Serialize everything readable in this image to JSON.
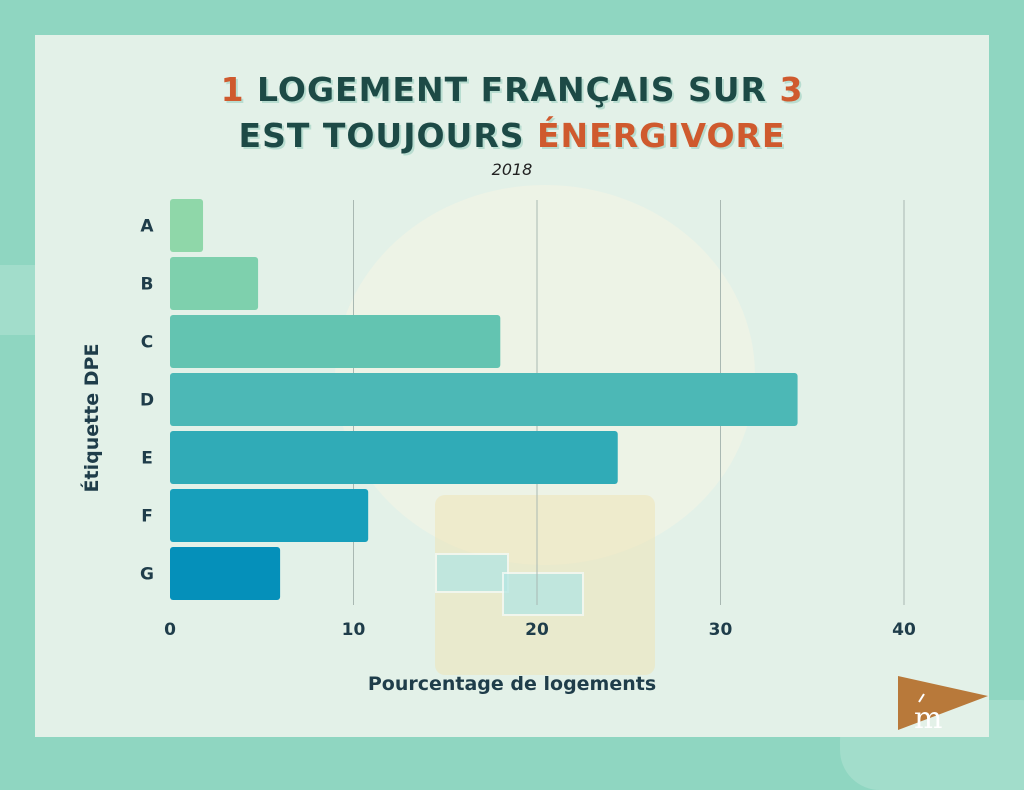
{
  "title": {
    "line1": [
      {
        "text": "1",
        "accent": true
      },
      {
        "text": " LOGEMENT FRANÇAIS SUR ",
        "accent": false
      },
      {
        "text": "3",
        "accent": true
      }
    ],
    "line2": [
      {
        "text": "EST TOUJOURS ",
        "accent": false
      },
      {
        "text": "ÉNERGIVORE",
        "accent": true
      }
    ]
  },
  "subtitle": "2018",
  "logo_text": "m",
  "colors": {
    "title": "#1d4a46",
    "accent": "#cf5a2e",
    "axis_text": "#1f3d4a",
    "grid": "#a9b8b2"
  },
  "chart_data": {
    "type": "bar",
    "orientation": "horizontal",
    "title": "1 LOGEMENT FRANÇAIS SUR 3 EST TOUJOURS ÉNERGIVORE",
    "subtitle": "2018",
    "xlabel": "Pourcentage de logements",
    "ylabel": "Étiquette DPE",
    "categories": [
      "A",
      "B",
      "C",
      "D",
      "E",
      "F",
      "G"
    ],
    "values": [
      1.8,
      4.8,
      18.0,
      34.2,
      24.4,
      10.8,
      6.0
    ],
    "bar_colors": [
      "#8fd7a9",
      "#7ed0ad",
      "#63c4b1",
      "#4cb8b6",
      "#30abb7",
      "#179fbb",
      "#0590ba"
    ],
    "xlim": [
      0,
      40
    ],
    "xticks": [
      "0",
      "10",
      "20",
      "30",
      "40"
    ],
    "grid": true
  }
}
